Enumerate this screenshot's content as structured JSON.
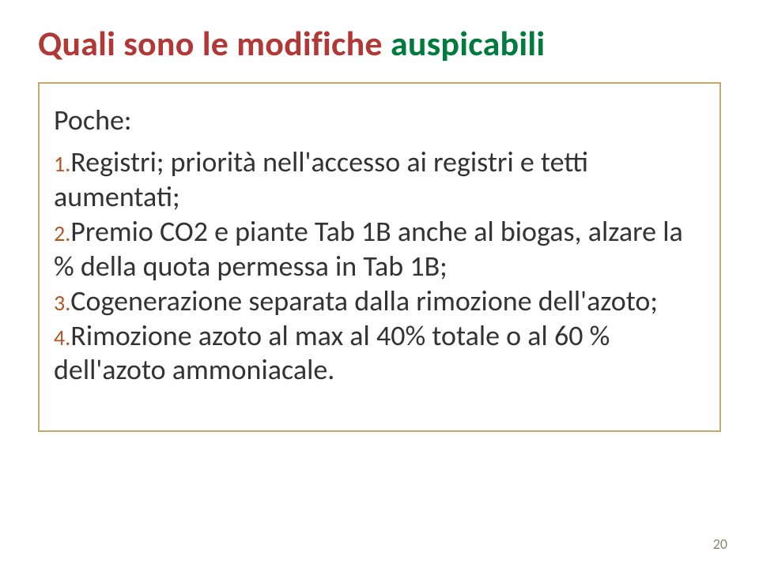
{
  "title": {
    "words": [
      "Quali",
      "sono",
      "le",
      "modifiche",
      "auspicabili"
    ],
    "colors": [
      "#b23838",
      "#b23838",
      "#b23838",
      "#b23838",
      "#007a3d"
    ]
  },
  "content": {
    "intro": "Poche:",
    "items": [
      {
        "num": "1.",
        "text": "Registri; priorità nell'accesso ai registri e tetti aumentati;"
      },
      {
        "num": "2.",
        "text": "Premio CO2 e piante Tab 1B anche al biogas, alzare la % della quota permessa in Tab 1B;"
      },
      {
        "num": "3.",
        "text": "Cogenerazione separata dalla rimozione dell'azoto;"
      },
      {
        "num": "4.",
        "text": "Rimozione azoto al max al 40% totale o al 60 % dell'azoto ammoniacale."
      }
    ]
  },
  "pageNumber": "20",
  "styling": {
    "title_fontsize": 44,
    "body_fontsize": 36,
    "num_fontsize": 28,
    "num_color": "#b05626",
    "body_color": "#333333",
    "border_color": "#c4a96a",
    "page_number_color": "#8b8274",
    "background": "#ffffff"
  }
}
